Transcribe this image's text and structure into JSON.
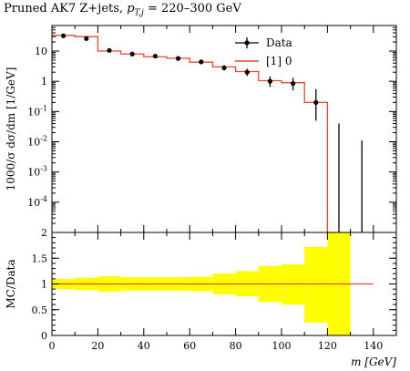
{
  "title_main": "Pruned AK7 Z+jets,",
  "title_kin": "p",
  "title_kin_sub": "T,j",
  "title_range": " = 220–300 GeV",
  "chart_data": [
    {
      "type": "line",
      "panel": "main",
      "yscale": "log",
      "ylim": [
        1e-05,
        70
      ],
      "xlim": [
        0,
        150
      ],
      "ylabel": "1000/σ dσ/dm [1/GeV]",
      "y_tick_labels": [
        "10^{-4}",
        "10^{-3}",
        "10^{-2}",
        "10^{-1}",
        "1",
        "10",
        ""
      ],
      "legend_position": "top-right",
      "legend": [
        "Data",
        "[1] 0"
      ],
      "series": [
        {
          "name": "Data",
          "style": "points-with-error-bars",
          "color": "#000000",
          "x": [
            5,
            15,
            25,
            35,
            45,
            55,
            65,
            75,
            85,
            95,
            105,
            115,
            125,
            135
          ],
          "y": [
            32,
            26,
            10.5,
            8.0,
            6.8,
            5.7,
            4.4,
            2.8,
            2.0,
            1.0,
            0.85,
            0.2,
            null,
            null
          ],
          "err_low": [
            3,
            2.5,
            1.0,
            0.8,
            0.6,
            0.6,
            0.6,
            0.5,
            0.5,
            0.35,
            0.35,
            0.15,
            null,
            null
          ],
          "err_high": [
            3,
            2.5,
            1.0,
            0.8,
            0.6,
            0.6,
            0.6,
            0.6,
            0.6,
            0.45,
            0.45,
            0.35,
            0.04,
            0.011
          ]
        },
        {
          "name": "[1] 0",
          "style": "step",
          "color": "#e8472f",
          "bin_edges": [
            0,
            10,
            20,
            30,
            40,
            50,
            60,
            70,
            80,
            90,
            100,
            110,
            120
          ],
          "values": [
            33,
            30,
            10,
            8.0,
            6.5,
            5.8,
            4.3,
            3.0,
            2.1,
            1.05,
            0.9,
            0.2
          ]
        }
      ]
    },
    {
      "type": "area",
      "panel": "ratio",
      "ylim": [
        0,
        2
      ],
      "xlim": [
        0,
        150
      ],
      "xlabel": "m [GeV]",
      "ylabel": "MC/Data",
      "y_tick_labels": [
        "0",
        "0.5",
        "1",
        "1.5",
        "2"
      ],
      "x_tick_labels": [
        "0",
        "20",
        "40",
        "60",
        "80",
        "100",
        "120",
        "140"
      ],
      "band_color": "#ffff00",
      "ratio_color": "#e8472f",
      "bin_edges": [
        0,
        10,
        20,
        30,
        40,
        50,
        60,
        70,
        80,
        90,
        100,
        110,
        120,
        130
      ],
      "band_low": [
        0.9,
        0.88,
        0.85,
        0.87,
        0.87,
        0.87,
        0.86,
        0.8,
        0.76,
        0.65,
        0.6,
        0.25,
        0.0
      ],
      "band_high": [
        1.1,
        1.12,
        1.15,
        1.13,
        1.13,
        1.13,
        1.14,
        1.2,
        1.25,
        1.35,
        1.38,
        1.72,
        2.0
      ],
      "ratio_line": {
        "x_start": 0,
        "x_end": 140,
        "y": 1.0
      }
    }
  ]
}
